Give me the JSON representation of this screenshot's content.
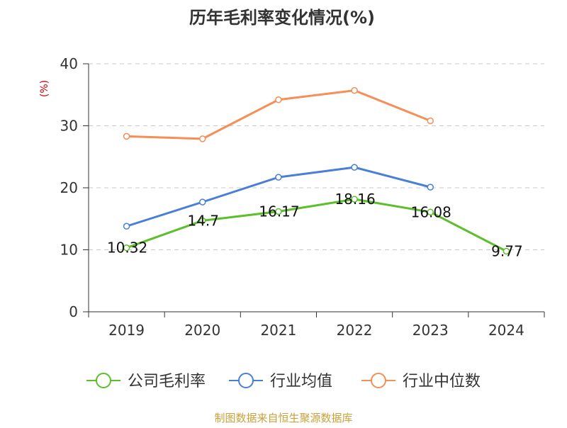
{
  "chart_data": {
    "type": "line",
    "title": "历年毛利率变化情况(%)",
    "ylabel": "(%)",
    "xlabel": "",
    "categories": [
      "2019",
      "2020",
      "2021",
      "2022",
      "2023",
      "2024"
    ],
    "ylim": [
      0,
      40
    ],
    "yticks": [
      0,
      10,
      20,
      30,
      40
    ],
    "grid": true,
    "legend_position": "bottom",
    "series": [
      {
        "name": "公司毛利率",
        "color": "#5cbf2b",
        "values": [
          10.32,
          14.7,
          16.17,
          18.16,
          16.08,
          9.77
        ],
        "labels": [
          "10.32",
          "14.7",
          "16.17",
          "18.16",
          "16.08",
          "9.77"
        ]
      },
      {
        "name": "行业均值",
        "color": "#4a7fd8",
        "values": [
          13.8,
          17.7,
          21.7,
          23.3,
          20.1,
          null
        ]
      },
      {
        "name": "行业中位数",
        "color": "#f58e57",
        "values": [
          28.3,
          27.9,
          34.2,
          35.7,
          30.8,
          null
        ]
      }
    ],
    "source": "制图数据来自恒生聚源数据库",
    "source_color": "#c9a03a",
    "axis_label_color": "#cc0000"
  }
}
